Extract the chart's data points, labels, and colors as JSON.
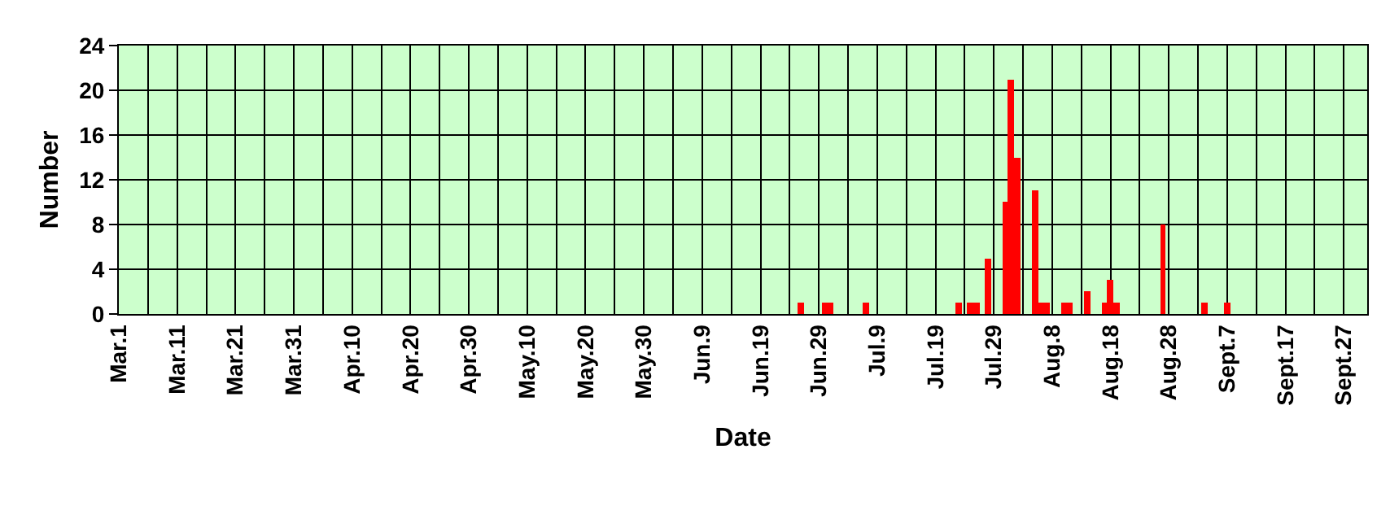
{
  "chart_data": {
    "type": "bar",
    "xlabel": "Date",
    "ylabel": "Number",
    "x": [
      "--06-26",
      "--06-30",
      "--07-01",
      "--07-07",
      "--07-23",
      "--07-25",
      "--07-26",
      "--07-28",
      "--07-31",
      "--08-01",
      "--08-02",
      "--08-05",
      "--08-06",
      "--08-07",
      "--08-10",
      "--08-11",
      "--08-14",
      "--08-17",
      "--08-18",
      "--08-19",
      "--08-27",
      "--09-03",
      "--09-07"
    ],
    "values": [
      1,
      1,
      1,
      1,
      1,
      1,
      1,
      5,
      10,
      21,
      14,
      11,
      1,
      1,
      1,
      1,
      2,
      1,
      3,
      1,
      8,
      1,
      1
    ],
    "color": "#ff0000",
    "xlim": [
      "--03-01",
      "--10-01"
    ],
    "xticks": [
      {
        "value": "--03-01",
        "label": "Mar.1"
      },
      {
        "value": "--03-06",
        "label": null
      },
      {
        "value": "--03-11",
        "label": "Mar.11"
      },
      {
        "value": "--03-16",
        "label": null
      },
      {
        "value": "--03-21",
        "label": "Mar.21"
      },
      {
        "value": "--03-26",
        "label": null
      },
      {
        "value": "--03-31",
        "label": "Mar.31"
      },
      {
        "value": "--04-05",
        "label": null
      },
      {
        "value": "--04-10",
        "label": "Apr.10"
      },
      {
        "value": "--04-15",
        "label": null
      },
      {
        "value": "--04-20",
        "label": "Apr.20"
      },
      {
        "value": "--04-25",
        "label": null
      },
      {
        "value": "--04-30",
        "label": "Apr.30"
      },
      {
        "value": "--05-05",
        "label": null
      },
      {
        "value": "--05-10",
        "label": "May.10"
      },
      {
        "value": "--05-15",
        "label": null
      },
      {
        "value": "--05-20",
        "label": "May.20"
      },
      {
        "value": "--05-25",
        "label": null
      },
      {
        "value": "--05-30",
        "label": "May.30"
      },
      {
        "value": "--06-04",
        "label": null
      },
      {
        "value": "--06-09",
        "label": "Jun.9"
      },
      {
        "value": "--06-14",
        "label": null
      },
      {
        "value": "--06-19",
        "label": "Jun.19"
      },
      {
        "value": "--06-24",
        "label": null
      },
      {
        "value": "--06-29",
        "label": "Jun.29"
      },
      {
        "value": "--07-04",
        "label": null
      },
      {
        "value": "--07-09",
        "label": "Jul.9"
      },
      {
        "value": "--07-14",
        "label": null
      },
      {
        "value": "--07-19",
        "label": "Jul.19"
      },
      {
        "value": "--07-24",
        "label": null
      },
      {
        "value": "--07-29",
        "label": "Jul.29"
      },
      {
        "value": "--08-03",
        "label": null
      },
      {
        "value": "--08-08",
        "label": "Aug.8"
      },
      {
        "value": "--08-13",
        "label": null
      },
      {
        "value": "--08-18",
        "label": "Aug.18"
      },
      {
        "value": "--08-23",
        "label": null
      },
      {
        "value": "--08-28",
        "label": "Aug.28"
      },
      {
        "value": "--09-02",
        "label": null
      },
      {
        "value": "--09-07",
        "label": "Sept.7"
      },
      {
        "value": "--09-12",
        "label": null
      },
      {
        "value": "--09-17",
        "label": "Sept.17"
      },
      {
        "value": "--09-22",
        "label": null
      },
      {
        "value": "--09-27",
        "label": "Sept.27"
      }
    ],
    "ylim": [
      0,
      24
    ],
    "yticks": [
      0,
      4,
      8,
      12,
      16,
      20,
      24
    ],
    "grid": true
  }
}
